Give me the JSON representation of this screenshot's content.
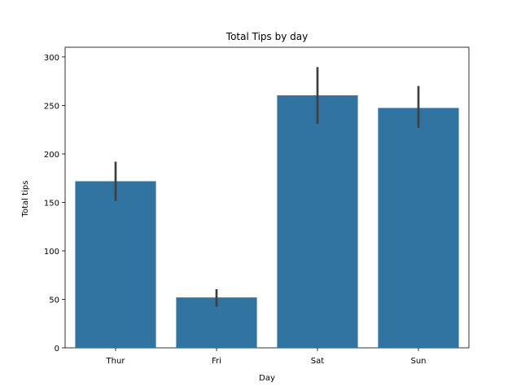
{
  "chart_data": {
    "type": "bar",
    "title": "Total Tips by day",
    "xlabel": "Day",
    "ylabel": "Total tips",
    "categories": [
      "Thur",
      "Fri",
      "Sat",
      "Sun"
    ],
    "values": [
      171.83,
      51.96,
      260.4,
      247.39
    ],
    "error_bars": [
      [
        151.5,
        192.0
      ],
      [
        42.5,
        60.5
      ],
      [
        231.0,
        289.5
      ],
      [
        227.0,
        270.0
      ]
    ],
    "ylim": [
      0,
      310
    ],
    "yticks": [
      0,
      50,
      100,
      150,
      200,
      250,
      300
    ],
    "grid": false,
    "colors": {
      "bar": "#3274a1",
      "error": "#3f3f3f",
      "axis": "#000000"
    }
  }
}
